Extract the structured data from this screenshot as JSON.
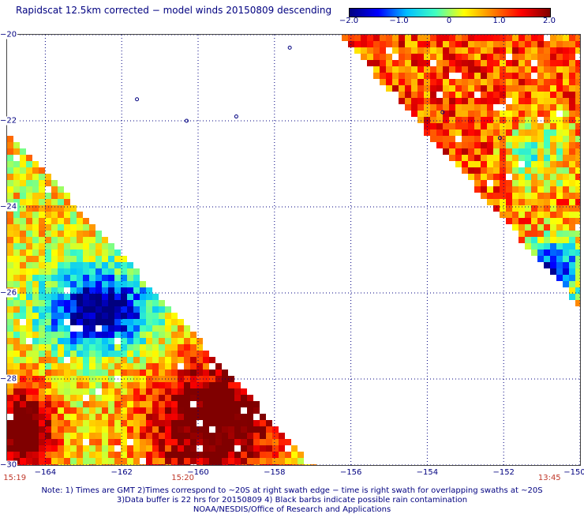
{
  "title": "Rapidscat 12.5km corrected − model winds 20150809 descending",
  "colorbar": {
    "tick_labels": [
      "−2.0",
      "−1.0",
      "0",
      "1.0",
      "2.0"
    ],
    "tick_values": [
      -2,
      -1,
      0,
      1,
      2
    ],
    "range": [
      -2,
      2
    ],
    "colors": [
      "#00007f",
      "#0000ff",
      "#00bfff",
      "#40ffc0",
      "#ffff00",
      "#ff8000",
      "#ff0000",
      "#800000"
    ]
  },
  "map": {
    "lon_range": [
      -165,
      -150
    ],
    "lat_range": [
      -20,
      -30
    ],
    "lat_labels": [
      {
        "lat": -20,
        "text": "−20"
      },
      {
        "lat": -22,
        "text": "−22"
      },
      {
        "lat": -24,
        "text": "−24"
      },
      {
        "lat": -26,
        "text": "−26"
      },
      {
        "lat": -28,
        "text": "−28"
      },
      {
        "lat": -30,
        "text": "−30"
      }
    ],
    "lon_labels": [
      {
        "lon": -164,
        "text": "−164"
      },
      {
        "lon": -162,
        "text": "−162"
      },
      {
        "lon": -160,
        "text": "−160"
      },
      {
        "lon": -158,
        "text": "−158"
      },
      {
        "lon": -156,
        "text": "−156"
      },
      {
        "lon": -154,
        "text": "−154"
      },
      {
        "lon": -152,
        "text": "−152"
      },
      {
        "lon": -150,
        "text": "−150"
      }
    ],
    "swath_times": [
      {
        "lon": -164.8,
        "text": "15:19"
      },
      {
        "lon": -160.4,
        "text": "15:20"
      },
      {
        "lon": -150.8,
        "text": "13:45"
      }
    ],
    "swaths": [
      {
        "name": "west",
        "edge_start": [
          -165.0,
          -22.2
        ],
        "edge_end": [
          -157.0,
          -30.0
        ]
      },
      {
        "name": "east",
        "edge_start": [
          -156.3,
          -20.0
        ],
        "edge_end": [
          -150.0,
          -26.3
        ]
      }
    ]
  },
  "notes": [
    "Note: 1) Times are GMT 2)Times correspond to ~20S at right swath edge − time is right swath for overlapping swaths at ~20S",
    "3)Data buffer is 22 hrs for 20150809 4) Black barbs indicate possible rain contamination",
    "NOAA/NESDIS/Office of Research and Applications"
  ]
}
